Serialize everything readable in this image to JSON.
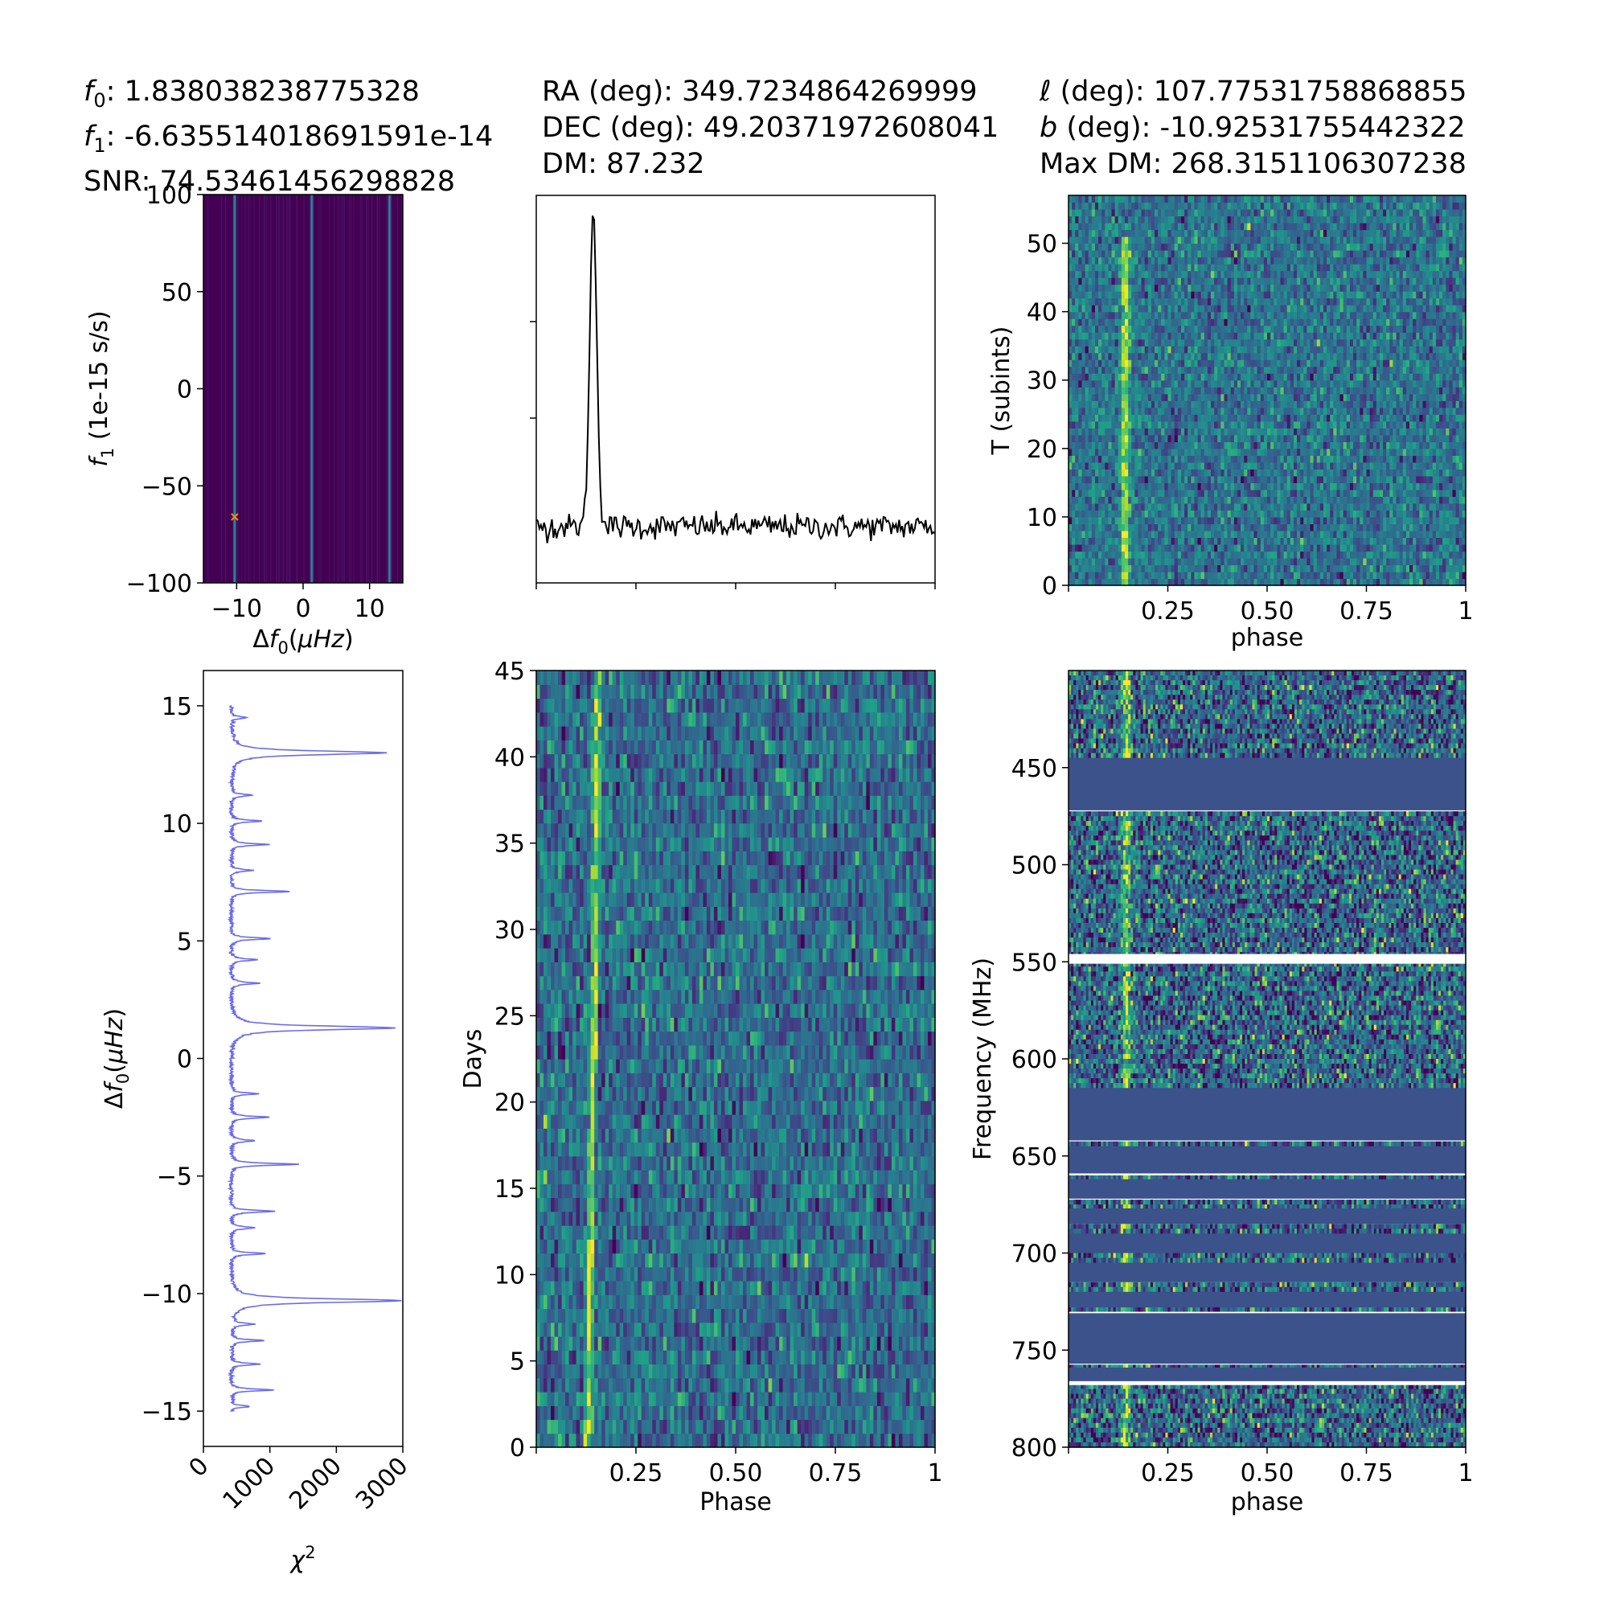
{
  "header": {
    "left": [
      "f0: 1.838038238775328",
      "f1: -6.635514018691591e-14",
      "SNR: 74.53461456298828"
    ],
    "center": [
      "RA (deg): 349.7234864269999",
      "DEC (deg): 49.20371972608041",
      "DM: 87.232"
    ],
    "right": [
      "ℓ (deg): 107.77531758868855",
      "b (deg): -10.92531755442322",
      "Max DM: 268.3151106307238"
    ]
  },
  "colors": {
    "viridis_dark": "#440154",
    "viridis_mid": "#21918c",
    "viridis_bright": "#fde725",
    "masked_band": "#3b528b",
    "chi2_line": "#6b6bea",
    "marker": "#ff8c00"
  },
  "chart_data": [
    {
      "id": "f0f1-search",
      "type": "heatmap",
      "xlabel": "Δf0(μHz)",
      "ylabel": "f1 (1e-15 s/s)",
      "xlim": [
        -15,
        15
      ],
      "ylim": [
        -100,
        100
      ],
      "xticks": [
        -10,
        0,
        10
      ],
      "yticks": [
        -100,
        -50,
        0,
        50,
        100
      ],
      "ridges_x": [
        -10.3,
        1.3,
        13.0
      ],
      "best_marker": {
        "x": -10.3,
        "y": -66
      }
    },
    {
      "id": "pulse-profile",
      "type": "line",
      "xlim": [
        0,
        1
      ],
      "xticks": [
        0,
        0.25,
        0.5,
        0.75,
        1.0
      ],
      "xtick_labels_shown": false,
      "ytick_labels_shown": false,
      "peak_phase": 0.143,
      "peak_height": 1.0,
      "noise_level": 0.02,
      "grid": false
    },
    {
      "id": "subints",
      "type": "heatmap",
      "xlabel": "phase",
      "ylabel": "T (subints)",
      "xlim": [
        0,
        1
      ],
      "ylim": [
        0,
        57
      ],
      "xticks": [
        0.25,
        0.5,
        0.75,
        1.0
      ],
      "yticks": [
        0,
        10,
        20,
        30,
        40,
        50
      ],
      "pulse_phase": 0.143,
      "signal_top_subint": 51
    },
    {
      "id": "chi2-scan",
      "type": "line",
      "xlabel": "χ2",
      "ylabel": "Δf0(μHz)",
      "xlim": [
        0,
        3000
      ],
      "ylim": [
        -16.5,
        16.5
      ],
      "xticks": [
        0,
        1000,
        2000,
        3000
      ],
      "yticks": [
        -15,
        -10,
        -5,
        0,
        5,
        10,
        15
      ],
      "baseline": 380,
      "peaks": [
        {
          "y": 13.0,
          "x": 2700
        },
        {
          "y": 1.3,
          "x": 2850
        },
        {
          "y": -10.3,
          "x": 2930
        },
        {
          "y": 7.1,
          "x": 1280
        },
        {
          "y": -4.5,
          "x": 1400
        },
        {
          "y": 5.1,
          "x": 1000
        },
        {
          "y": -6.5,
          "x": 1050
        },
        {
          "y": -2.5,
          "x": 980
        },
        {
          "y": -14.1,
          "x": 1020
        },
        {
          "y": 9.1,
          "x": 950
        },
        {
          "y": 10.1,
          "x": 850
        },
        {
          "y": -8.3,
          "x": 900
        },
        {
          "y": -12.0,
          "x": 860
        },
        {
          "y": 3.2,
          "x": 820
        },
        {
          "y": -1.5,
          "x": 780
        },
        {
          "y": 11.2,
          "x": 720
        },
        {
          "y": -3.5,
          "x": 760
        },
        {
          "y": -13.0,
          "x": 800
        },
        {
          "y": 4.2,
          "x": 760
        },
        {
          "y": -7.2,
          "x": 760
        },
        {
          "y": 8.0,
          "x": 700
        },
        {
          "y": -11.3,
          "x": 720
        },
        {
          "y": 14.5,
          "x": 600
        },
        {
          "y": -14.8,
          "x": 680
        }
      ]
    },
    {
      "id": "days",
      "type": "heatmap",
      "xlabel": "Phase",
      "ylabel": "Days",
      "xlim": [
        0,
        1
      ],
      "ylim": [
        0,
        45
      ],
      "xticks": [
        0.25,
        0.5,
        0.75,
        1.0
      ],
      "yticks": [
        0,
        5,
        10,
        15,
        20,
        25,
        30,
        35,
        40,
        45
      ],
      "pulse_phase_bottom": 0.13,
      "pulse_phase_top": 0.155
    },
    {
      "id": "frequency",
      "type": "heatmap",
      "xlabel": "phase",
      "ylabel": "Frequency (MHz)",
      "xlim": [
        0,
        1
      ],
      "ylim": [
        800,
        400
      ],
      "xticks": [
        0.25,
        0.5,
        0.75,
        1.0
      ],
      "yticks": [
        450,
        500,
        550,
        600,
        650,
        700,
        750,
        800
      ],
      "pulse_phase": 0.145,
      "masked_bands": [
        [
          445,
          472
        ],
        [
          615,
          642
        ],
        [
          645,
          659
        ],
        [
          662,
          672
        ],
        [
          677,
          685
        ],
        [
          690,
          700
        ],
        [
          705,
          715
        ],
        [
          720,
          728
        ],
        [
          731,
          757
        ],
        [
          759,
          767
        ]
      ],
      "blank_bands": [
        [
          546,
          551
        ],
        [
          766,
          768
        ]
      ]
    }
  ]
}
